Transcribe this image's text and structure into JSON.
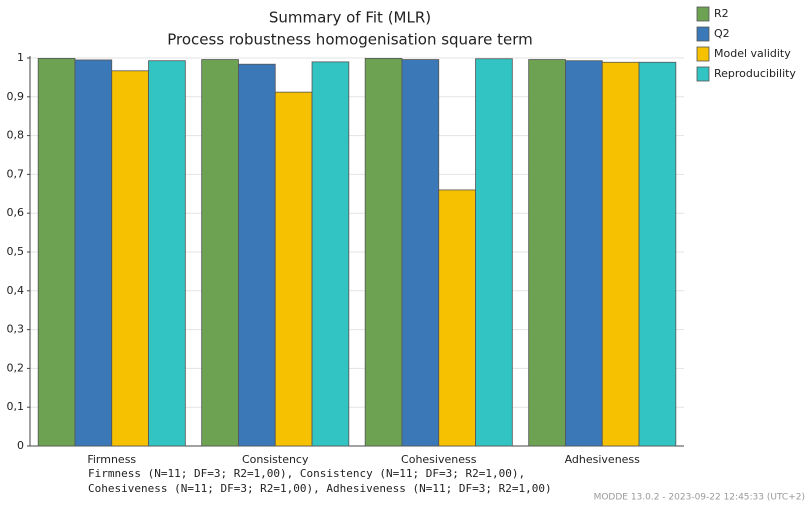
{
  "chart_data": {
    "type": "bar",
    "title": "Summary of Fit (MLR)",
    "subtitle": "Process robustness homogenisation square term",
    "categories": [
      "Firmness",
      "Consistency",
      "Cohesiveness",
      "Adhesiveness"
    ],
    "series": [
      {
        "name": "R2",
        "color": "#6ea253",
        "values": [
          0.999,
          0.996,
          0.999,
          0.996
        ]
      },
      {
        "name": "Q2",
        "color": "#3b78b8",
        "values": [
          0.995,
          0.984,
          0.996,
          0.993
        ]
      },
      {
        "name": "Model validity",
        "color": "#f6c100",
        "values": [
          0.967,
          0.912,
          0.66,
          0.989
        ]
      },
      {
        "name": "Reproducibility",
        "color": "#31c4c3",
        "values": [
          0.993,
          0.99,
          0.998,
          0.989
        ]
      }
    ],
    "ylim": [
      0,
      1
    ],
    "yticks": [
      0,
      {
        "value": 0.1,
        "label": "0,1"
      },
      {
        "value": 0.2,
        "label": "0,2"
      },
      {
        "value": 0.3,
        "label": "0,3"
      },
      {
        "value": 0.4,
        "label": "0,4"
      },
      {
        "value": 0.5,
        "label": "0,5"
      },
      {
        "value": 0.6,
        "label": "0,6"
      },
      {
        "value": 0.7,
        "label": "0,7"
      },
      {
        "value": 0.8,
        "label": "0,8"
      },
      {
        "value": 0.9,
        "label": "0,9"
      },
      1
    ],
    "grid": true,
    "legend": "top-right",
    "footnote": [
      "Firmness (N=11; DF=3; R2=1,00), Consistency (N=11; DF=3; R2=1,00),",
      "Cohesiveness (N=11; DF=3; R2=1,00), Adhesiveness (N=11; DF=3; R2=1,00)"
    ],
    "watermark": "MODDE 13.0.2 - 2023-09-22 12:45:33 (UTC+2)"
  }
}
